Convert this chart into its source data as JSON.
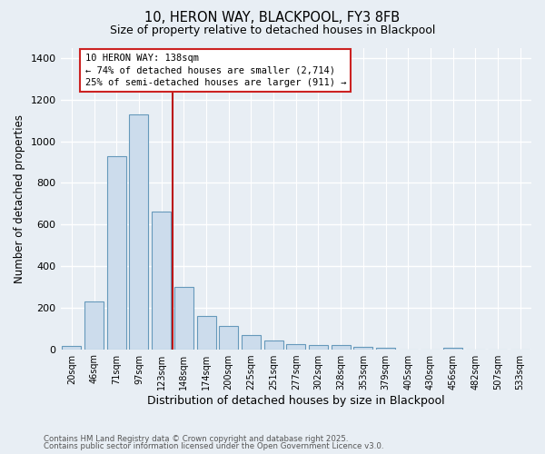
{
  "title": "10, HERON WAY, BLACKPOOL, FY3 8FB",
  "subtitle": "Size of property relative to detached houses in Blackpool",
  "xlabel": "Distribution of detached houses by size in Blackpool",
  "ylabel": "Number of detached properties",
  "categories": [
    "20sqm",
    "46sqm",
    "71sqm",
    "97sqm",
    "123sqm",
    "148sqm",
    "174sqm",
    "200sqm",
    "225sqm",
    "251sqm",
    "277sqm",
    "302sqm",
    "328sqm",
    "353sqm",
    "379sqm",
    "405sqm",
    "430sqm",
    "456sqm",
    "482sqm",
    "507sqm",
    "533sqm"
  ],
  "values": [
    15,
    230,
    930,
    1130,
    660,
    300,
    160,
    110,
    70,
    40,
    25,
    20,
    20,
    12,
    8,
    0,
    0,
    5,
    0,
    0,
    0
  ],
  "bar_color": "#ccdcec",
  "bar_edge_color": "#6699bb",
  "vline_color": "#bb1111",
  "annotation_text": "10 HERON WAY: 138sqm\n← 74% of detached houses are smaller (2,714)\n25% of semi-detached houses are larger (911) →",
  "annotation_box_color": "#ffffff",
  "annotation_box_edge": "#cc2222",
  "footnote1": "Contains HM Land Registry data © Crown copyright and database right 2025.",
  "footnote2": "Contains public sector information licensed under the Open Government Licence v3.0.",
  "ylim": [
    0,
    1450
  ],
  "yticks": [
    0,
    200,
    400,
    600,
    800,
    1000,
    1200,
    1400
  ],
  "background_color": "#e8eef4",
  "plot_background": "#e8eef4",
  "grid_color": "#ffffff"
}
